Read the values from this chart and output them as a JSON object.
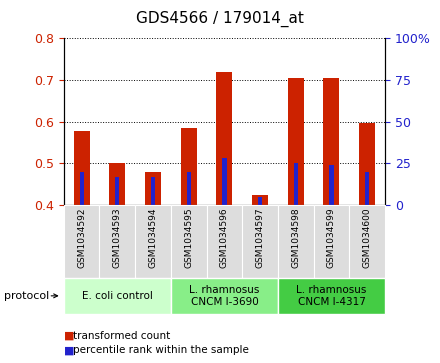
{
  "title": "GDS4566 / 179014_at",
  "samples": [
    "GSM1034592",
    "GSM1034593",
    "GSM1034594",
    "GSM1034595",
    "GSM1034596",
    "GSM1034597",
    "GSM1034598",
    "GSM1034599",
    "GSM1034600"
  ],
  "transformed_count": [
    0.578,
    0.5,
    0.48,
    0.585,
    0.72,
    0.425,
    0.705,
    0.705,
    0.597
  ],
  "percentile_rank_pct": [
    20,
    17,
    17,
    20,
    28,
    5,
    25,
    24,
    20
  ],
  "ylim_left": [
    0.4,
    0.8
  ],
  "ylim_right": [
    0,
    100
  ],
  "yticks_left": [
    0.4,
    0.5,
    0.6,
    0.7,
    0.8
  ],
  "yticks_right": [
    0,
    25,
    50,
    75,
    100
  ],
  "bar_color": "#cc2200",
  "percentile_color": "#2222cc",
  "bar_bottom": 0.4,
  "protocols": [
    {
      "label": "E. coli control",
      "start": 0,
      "end": 3,
      "color": "#ccffcc"
    },
    {
      "label": "L. rhamnosus\nCNCM I-3690",
      "start": 3,
      "end": 6,
      "color": "#88ee88"
    },
    {
      "label": "L. rhamnosus\nCNCM I-4317",
      "start": 6,
      "end": 9,
      "color": "#44cc44"
    }
  ],
  "background_color": "#ffffff",
  "left_tick_color": "#cc2200",
  "right_tick_color": "#2222cc",
  "sample_box_color": "#dddddd",
  "grid_linestyle": "dotted"
}
